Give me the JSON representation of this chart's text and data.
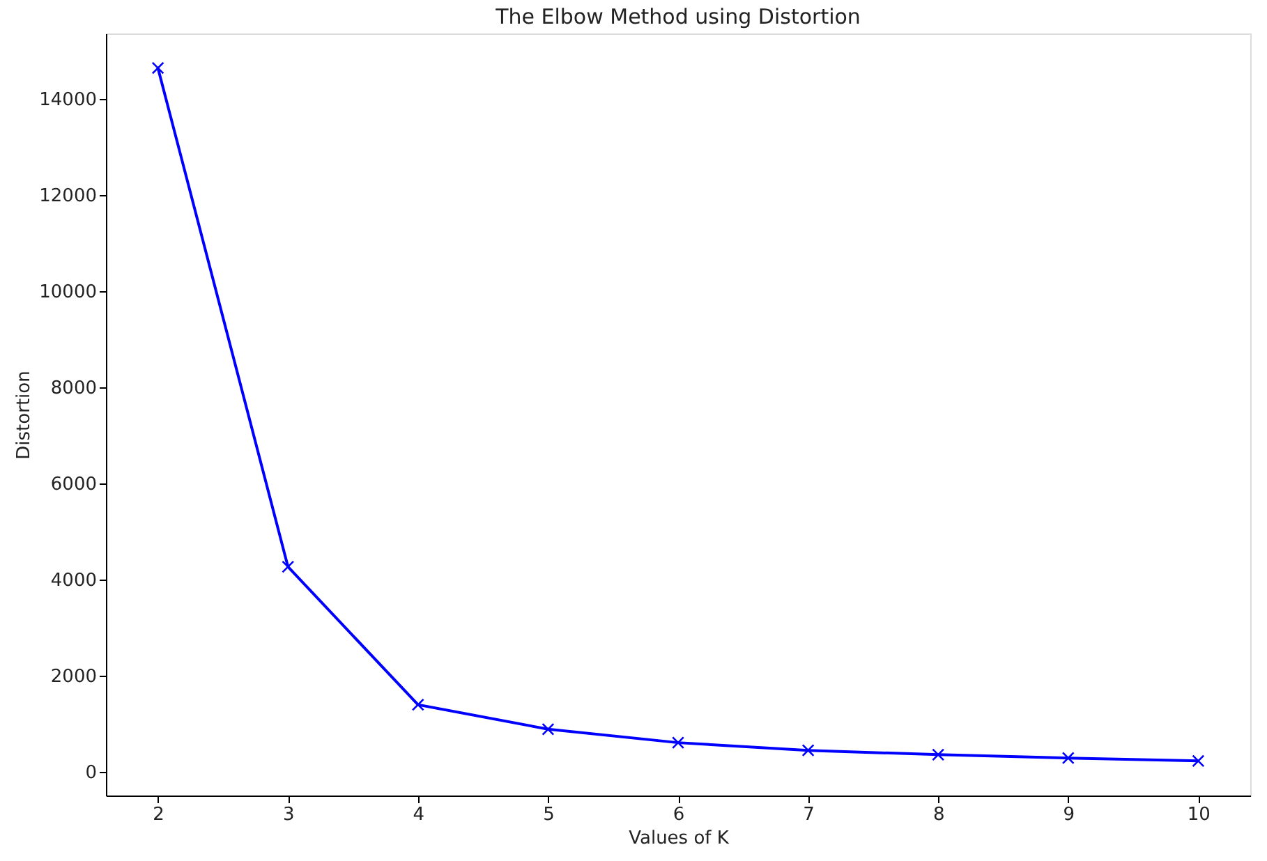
{
  "chart_data": {
    "type": "line",
    "title": "The Elbow Method using Distortion",
    "xlabel": "Values of K",
    "ylabel": "Distortion",
    "x": [
      2,
      3,
      4,
      5,
      6,
      7,
      8,
      9,
      10
    ],
    "series": [
      {
        "color": "#0000ff",
        "values": [
          14640,
          4260,
          1390,
          880,
          600,
          440,
          350,
          280,
          220
        ]
      }
    ],
    "xlim": [
      1.6,
      10.4
    ],
    "xticks": [
      2,
      3,
      4,
      5,
      6,
      7,
      8,
      9,
      10
    ],
    "ylim": [
      -500,
      15360
    ],
    "yticks": [
      0,
      2000,
      4000,
      6000,
      8000,
      10000,
      12000,
      14000
    ],
    "marker": "cross",
    "line_style": "solid",
    "grid": false
  }
}
